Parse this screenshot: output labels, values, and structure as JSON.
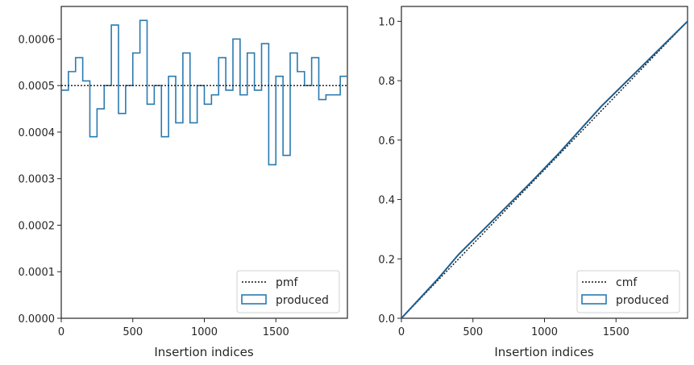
{
  "chart_data": [
    {
      "type": "histogram",
      "xlabel": "Insertion indices",
      "ylabel": "",
      "xlim": [
        0,
        2000
      ],
      "ylim": [
        0,
        0.00067
      ],
      "xticks": [
        "0",
        "500",
        "1000",
        "1500"
      ],
      "yticks": [
        "0.0000",
        "0.0001",
        "0.0002",
        "0.0003",
        "0.0004",
        "0.0005",
        "0.0006"
      ],
      "legend_position": "bottom-right",
      "legend": [
        "pmf",
        "produced"
      ],
      "reference_line": {
        "name": "pmf",
        "y": 0.0005,
        "style": "dotted"
      },
      "series": [
        {
          "name": "produced",
          "bin_width": 50,
          "values": [
            0.00049,
            0.00053,
            0.00056,
            0.00051,
            0.00039,
            0.00045,
            0.0005,
            0.00063,
            0.00044,
            0.0005,
            0.00057,
            0.00064,
            0.00046,
            0.0005,
            0.00039,
            0.00052,
            0.00042,
            0.00057,
            0.00042,
            0.0005,
            0.00046,
            0.00048,
            0.00056,
            0.00049,
            0.0006,
            0.00048,
            0.00057,
            0.00049,
            0.00059,
            0.00033,
            0.00052,
            0.00035,
            0.00057,
            0.00053,
            0.0005,
            0.00056,
            0.00047,
            0.00048,
            0.00048,
            0.00052
          ]
        }
      ]
    },
    {
      "type": "line",
      "xlabel": "Insertion indices",
      "ylabel": "",
      "xlim": [
        0,
        2000
      ],
      "ylim": [
        0,
        1.05
      ],
      "xticks": [
        "0",
        "500",
        "1000",
        "1500"
      ],
      "yticks": [
        "0.0",
        "0.2",
        "0.4",
        "0.6",
        "0.8",
        "1.0"
      ],
      "legend_position": "bottom-right",
      "legend": [
        "cmf",
        "produced"
      ],
      "series": [
        {
          "name": "cmf",
          "style": "dotted",
          "x": [
            0,
            2000
          ],
          "y": [
            0,
            1.0
          ]
        },
        {
          "name": "produced",
          "x": [
            0,
            250,
            400,
            650,
            900,
            1100,
            1400,
            2000
          ],
          "y": [
            0,
            0.13,
            0.215,
            0.335,
            0.455,
            0.555,
            0.715,
            1.0
          ]
        }
      ]
    }
  ],
  "colors": {
    "produced": "#2a7ab0",
    "produced_cdf": "#1b5e8f",
    "reference": "#111111",
    "frame": "#262626"
  }
}
